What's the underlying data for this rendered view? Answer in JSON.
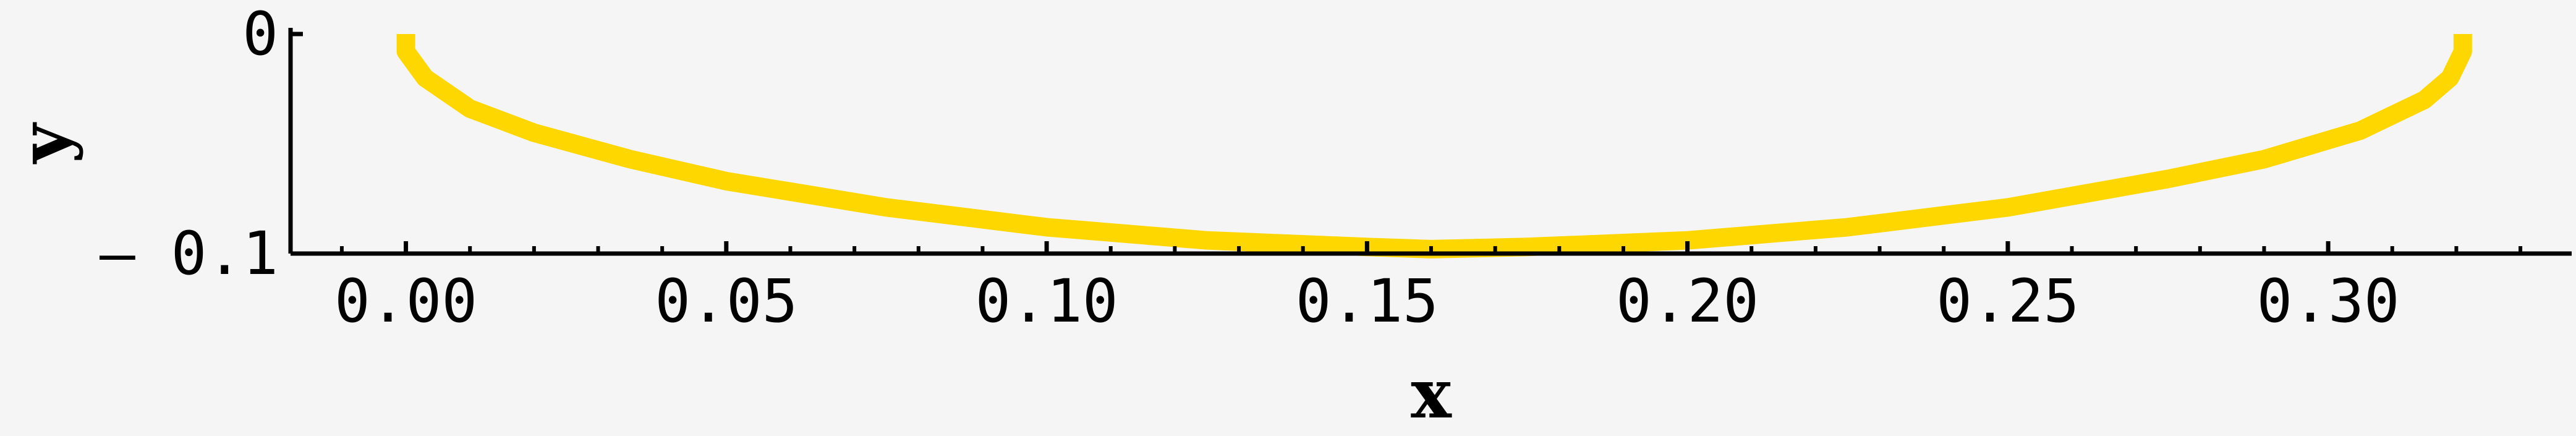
{
  "chart_data": {
    "type": "line",
    "title": "",
    "xlabel": "x",
    "ylabel": "y",
    "xlim": [
      -0.018,
      0.338
    ],
    "ylim": [
      -0.1,
      0
    ],
    "x_ticks": [
      {
        "value": 0.0,
        "label": "0.00"
      },
      {
        "value": 0.05,
        "label": "0.05"
      },
      {
        "value": 0.1,
        "label": "0.10"
      },
      {
        "value": 0.15,
        "label": "0.15"
      },
      {
        "value": 0.2,
        "label": "0.20"
      },
      {
        "value": 0.25,
        "label": "0.25"
      },
      {
        "value": 0.3,
        "label": "0.30"
      }
    ],
    "y_ticks": [
      {
        "value": 0,
        "label": "0"
      },
      {
        "value": -0.1,
        "label": "– 0.1"
      }
    ],
    "series": [
      {
        "color": "#FFD700",
        "x": [
          0.0,
          0.0,
          0.003,
          0.01,
          0.02,
          0.035,
          0.05,
          0.075,
          0.1,
          0.125,
          0.15,
          0.16,
          0.175,
          0.2,
          0.225,
          0.25,
          0.275,
          0.29,
          0.305,
          0.315,
          0.319,
          0.321,
          0.321
        ],
        "y": [
          0.0,
          -0.008,
          -0.02,
          -0.034,
          -0.045,
          -0.057,
          -0.067,
          -0.079,
          -0.088,
          -0.094,
          -0.097,
          -0.098,
          -0.097,
          -0.094,
          -0.088,
          -0.079,
          -0.066,
          -0.057,
          -0.044,
          -0.03,
          -0.02,
          -0.008,
          0.0
        ]
      }
    ],
    "grid": false,
    "legend": "none"
  }
}
